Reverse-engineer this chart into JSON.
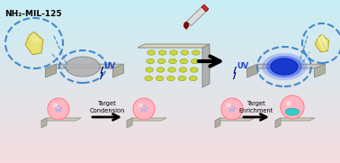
{
  "bg_color_top": "#f8d7da",
  "bg_color_bottom": "#b2ebf2",
  "title_text": "NH₂-MIL-125",
  "uv_label": "UV",
  "target_condensation": "Target\nCondension",
  "target_enrichment": "Target\nEnrichment",
  "crystal_color": "#e8e070",
  "crystal_shadow": "#b8a830",
  "plate_color": "#d0d0a0",
  "plate_well_color": "#c8d840",
  "ito_color": "#c8c8c8",
  "ito_border": "#a0a0a0",
  "blue_spot_color": "#1a3bbf",
  "dashed_circle_color": "#4488cc",
  "lightning_color": "#2255dd",
  "arrow_color": "#111111",
  "syringe_color": "#cc2222",
  "blood_drop_color": "#880000",
  "pink_sphere_color": "#ffb6c1",
  "cyan_accent": "#00bcd4",
  "small_platform_color": "#d0d0b0"
}
